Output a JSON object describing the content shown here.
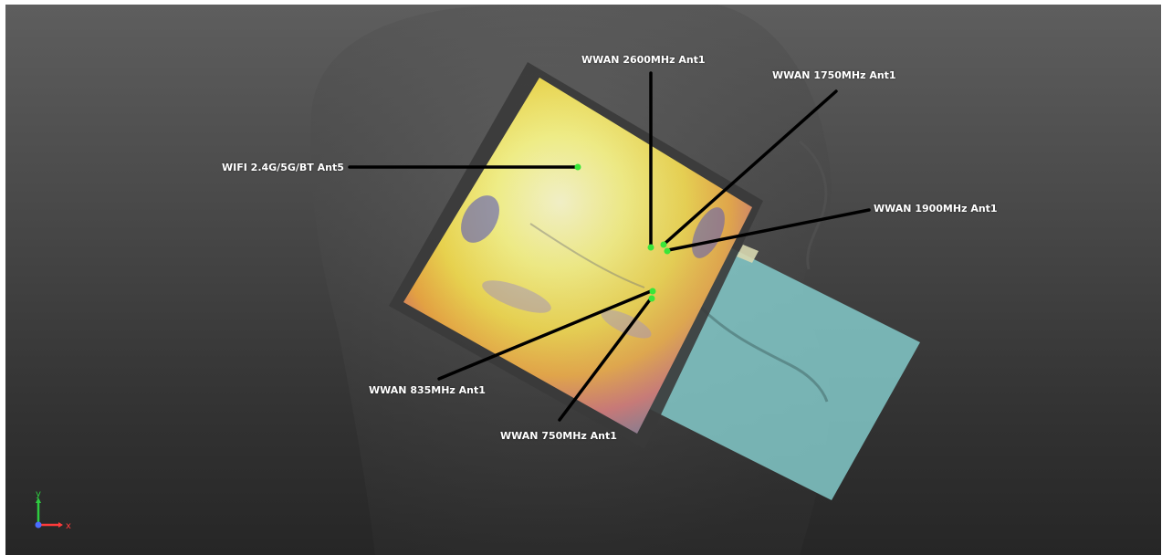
{
  "viewport": {
    "background_top": "#5e5e5e",
    "background_bottom": "#262626"
  },
  "colors": {
    "leader_line": "#000000",
    "feed_point": "#39e639",
    "phone_body": "#86d0d0",
    "label_text": "#ffffff"
  },
  "antennas": [
    {
      "name": "WIFI 2.4G/5G/BT Ant5"
    },
    {
      "name": "WWAN 2600MHz Ant1"
    },
    {
      "name": "WWAN 1750MHz Ant1"
    },
    {
      "name": "WWAN 1900MHz Ant1"
    },
    {
      "name": "WWAN 835MHz Ant1"
    },
    {
      "name": "WWAN 750MHz Ant1"
    }
  ],
  "axes": {
    "y_label": "y",
    "x_label": "x",
    "y_color": "#2ecc40",
    "x_color": "#ff3b3b",
    "z_color": "#4a6cff"
  }
}
